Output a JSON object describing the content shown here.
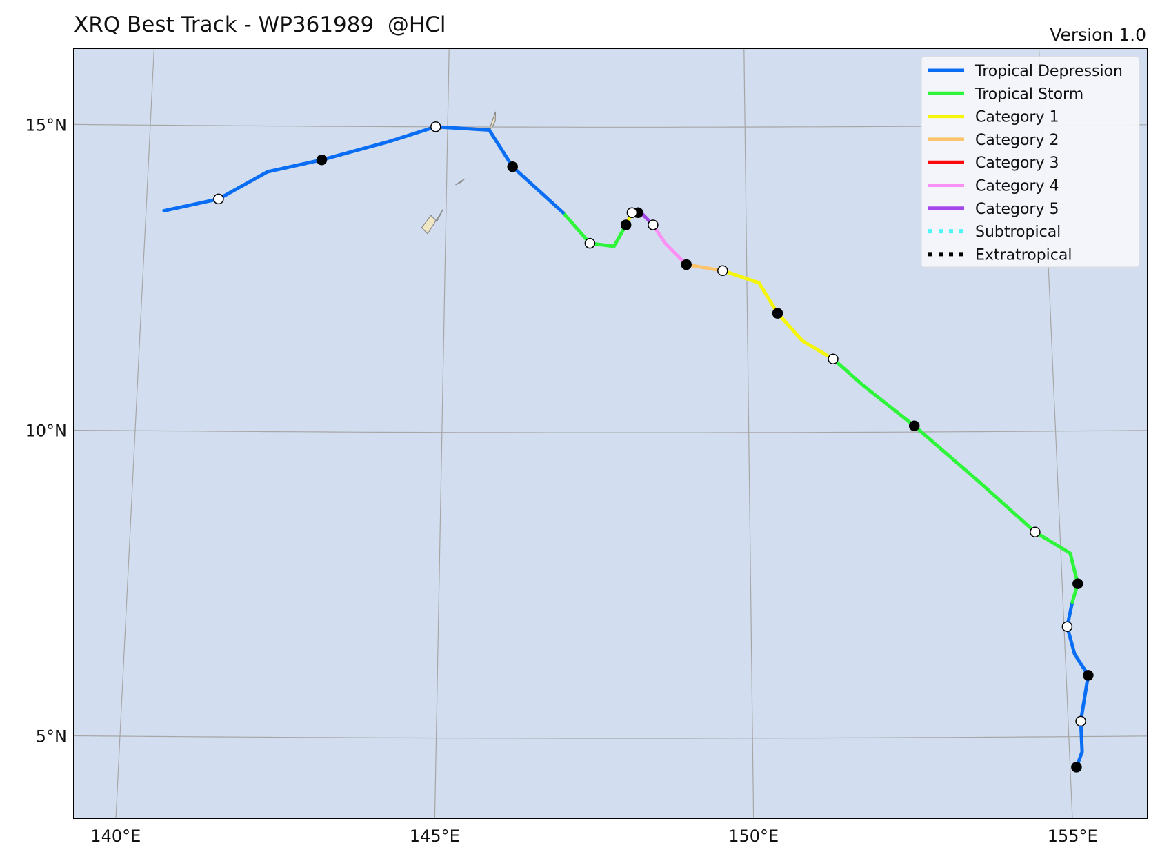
{
  "header": {
    "title": "XRQ Best Track - WP361989  @HCl",
    "version": "Version 1.0"
  },
  "axes": {
    "lon_labels": [
      "140°E",
      "145°E",
      "150°E",
      "155°E"
    ],
    "lat_labels": [
      "15°N",
      "10°N",
      "5°N"
    ],
    "lon_range": [
      139,
      156.5
    ],
    "lat_range": [
      3.6,
      16.2
    ]
  },
  "colors": {
    "ocean": "#d2deef",
    "land": "#efe6c3",
    "grid": "#a6a6a6",
    "frame": "#000000"
  },
  "legend": [
    {
      "label": "Tropical Depression",
      "color": "#0a6ef5",
      "style": "solid"
    },
    {
      "label": "Tropical Storm",
      "color": "#2ef53a",
      "style": "solid"
    },
    {
      "label": "Category 1",
      "color": "#f5f50a",
      "style": "solid"
    },
    {
      "label": "Category 2",
      "color": "#fdc46c",
      "style": "solid"
    },
    {
      "label": "Category 3",
      "color": "#fa0a0a",
      "style": "solid"
    },
    {
      "label": "Category 4",
      "color": "#fb91f5",
      "style": "solid"
    },
    {
      "label": "Category 5",
      "color": "#a347e8",
      "style": "solid"
    },
    {
      "label": "Subtropical",
      "color": "#4ef7f7",
      "style": "dotted"
    },
    {
      "label": "Extratropical",
      "color": "#000000",
      "style": "dotted"
    }
  ],
  "chart_data": {
    "type": "track-map",
    "legend_placement": "top-right",
    "segments": [
      {
        "category": "Tropical Depression",
        "points": [
          [
            155.1,
            4.5
          ],
          [
            155.2,
            4.75
          ],
          [
            155.2,
            5.25
          ],
          [
            155.35,
            6.0
          ],
          [
            155.15,
            6.35
          ],
          [
            155.05,
            6.8
          ],
          [
            155.15,
            7.2
          ]
        ]
      },
      {
        "category": "Tropical Storm",
        "points": [
          [
            155.15,
            7.2
          ],
          [
            155.25,
            7.5
          ],
          [
            155.15,
            8.0
          ],
          [
            154.6,
            8.35
          ],
          [
            153.7,
            9.2
          ],
          [
            152.7,
            10.1
          ],
          [
            151.9,
            10.75
          ],
          [
            151.4,
            11.2
          ]
        ]
      },
      {
        "category": "Category 1",
        "points": [
          [
            151.4,
            11.2
          ],
          [
            150.9,
            11.5
          ],
          [
            150.5,
            11.95
          ],
          [
            150.2,
            12.45
          ],
          [
            149.6,
            12.65
          ]
        ]
      },
      {
        "category": "Category 2",
        "points": [
          [
            149.6,
            12.65
          ],
          [
            149.0,
            12.75
          ]
        ]
      },
      {
        "category": "Category 4",
        "points": [
          [
            149.0,
            12.75
          ],
          [
            148.65,
            13.1
          ],
          [
            148.45,
            13.4
          ]
        ]
      },
      {
        "category": "Category 5",
        "points": [
          [
            148.45,
            13.4
          ],
          [
            148.25,
            13.6
          ],
          [
            148.15,
            13.65
          ]
        ]
      },
      {
        "category": "Category 1",
        "points": [
          [
            148.15,
            13.65
          ],
          [
            148.1,
            13.6
          ],
          [
            148.0,
            13.4
          ]
        ]
      },
      {
        "category": "Tropical Storm",
        "points": [
          [
            148.0,
            13.4
          ],
          [
            147.8,
            13.05
          ],
          [
            147.4,
            13.1
          ],
          [
            146.95,
            13.6
          ]
        ]
      },
      {
        "category": "Tropical Depression",
        "points": [
          [
            146.95,
            13.6
          ],
          [
            146.1,
            14.35
          ],
          [
            145.7,
            14.95
          ],
          [
            144.8,
            15.0
          ],
          [
            144.0,
            14.75
          ],
          [
            142.9,
            14.45
          ],
          [
            142.0,
            14.25
          ],
          [
            141.2,
            13.8
          ],
          [
            140.3,
            13.6
          ]
        ]
      }
    ],
    "markers": [
      {
        "lon": 155.1,
        "lat": 4.5,
        "fill": "black"
      },
      {
        "lon": 155.2,
        "lat": 5.25,
        "fill": "white"
      },
      {
        "lon": 155.35,
        "lat": 6.0,
        "fill": "black"
      },
      {
        "lon": 155.05,
        "lat": 6.8,
        "fill": "white"
      },
      {
        "lon": 155.25,
        "lat": 7.5,
        "fill": "black"
      },
      {
        "lon": 154.6,
        "lat": 8.35,
        "fill": "white"
      },
      {
        "lon": 152.7,
        "lat": 10.1,
        "fill": "black"
      },
      {
        "lon": 151.4,
        "lat": 11.2,
        "fill": "white"
      },
      {
        "lon": 150.5,
        "lat": 11.95,
        "fill": "black"
      },
      {
        "lon": 149.6,
        "lat": 12.65,
        "fill": "white"
      },
      {
        "lon": 149.0,
        "lat": 12.75,
        "fill": "black"
      },
      {
        "lon": 148.45,
        "lat": 13.4,
        "fill": "white"
      },
      {
        "lon": 148.2,
        "lat": 13.6,
        "fill": "black"
      },
      {
        "lon": 148.1,
        "lat": 13.6,
        "fill": "white"
      },
      {
        "lon": 148.0,
        "lat": 13.4,
        "fill": "black"
      },
      {
        "lon": 147.4,
        "lat": 13.1,
        "fill": "white"
      },
      {
        "lon": 146.1,
        "lat": 14.35,
        "fill": "black"
      },
      {
        "lon": 144.8,
        "lat": 15.0,
        "fill": "white"
      },
      {
        "lon": 142.9,
        "lat": 14.45,
        "fill": "black"
      },
      {
        "lon": 141.2,
        "lat": 13.8,
        "fill": "white"
      }
    ],
    "islands": [
      [
        [
          144.7,
          13.25
        ],
        [
          144.95,
          13.65
        ],
        [
          144.85,
          13.45
        ],
        [
          144.75,
          13.55
        ],
        [
          144.6,
          13.35
        ]
      ],
      [
        [
          145.25,
          14.1
        ],
        [
          145.15,
          14.05
        ],
        [
          145.3,
          14.15
        ]
      ],
      [
        [
          145.8,
          15.1
        ],
        [
          145.75,
          15.0
        ],
        [
          145.7,
          14.95
        ],
        [
          145.8,
          15.25
        ]
      ]
    ]
  }
}
